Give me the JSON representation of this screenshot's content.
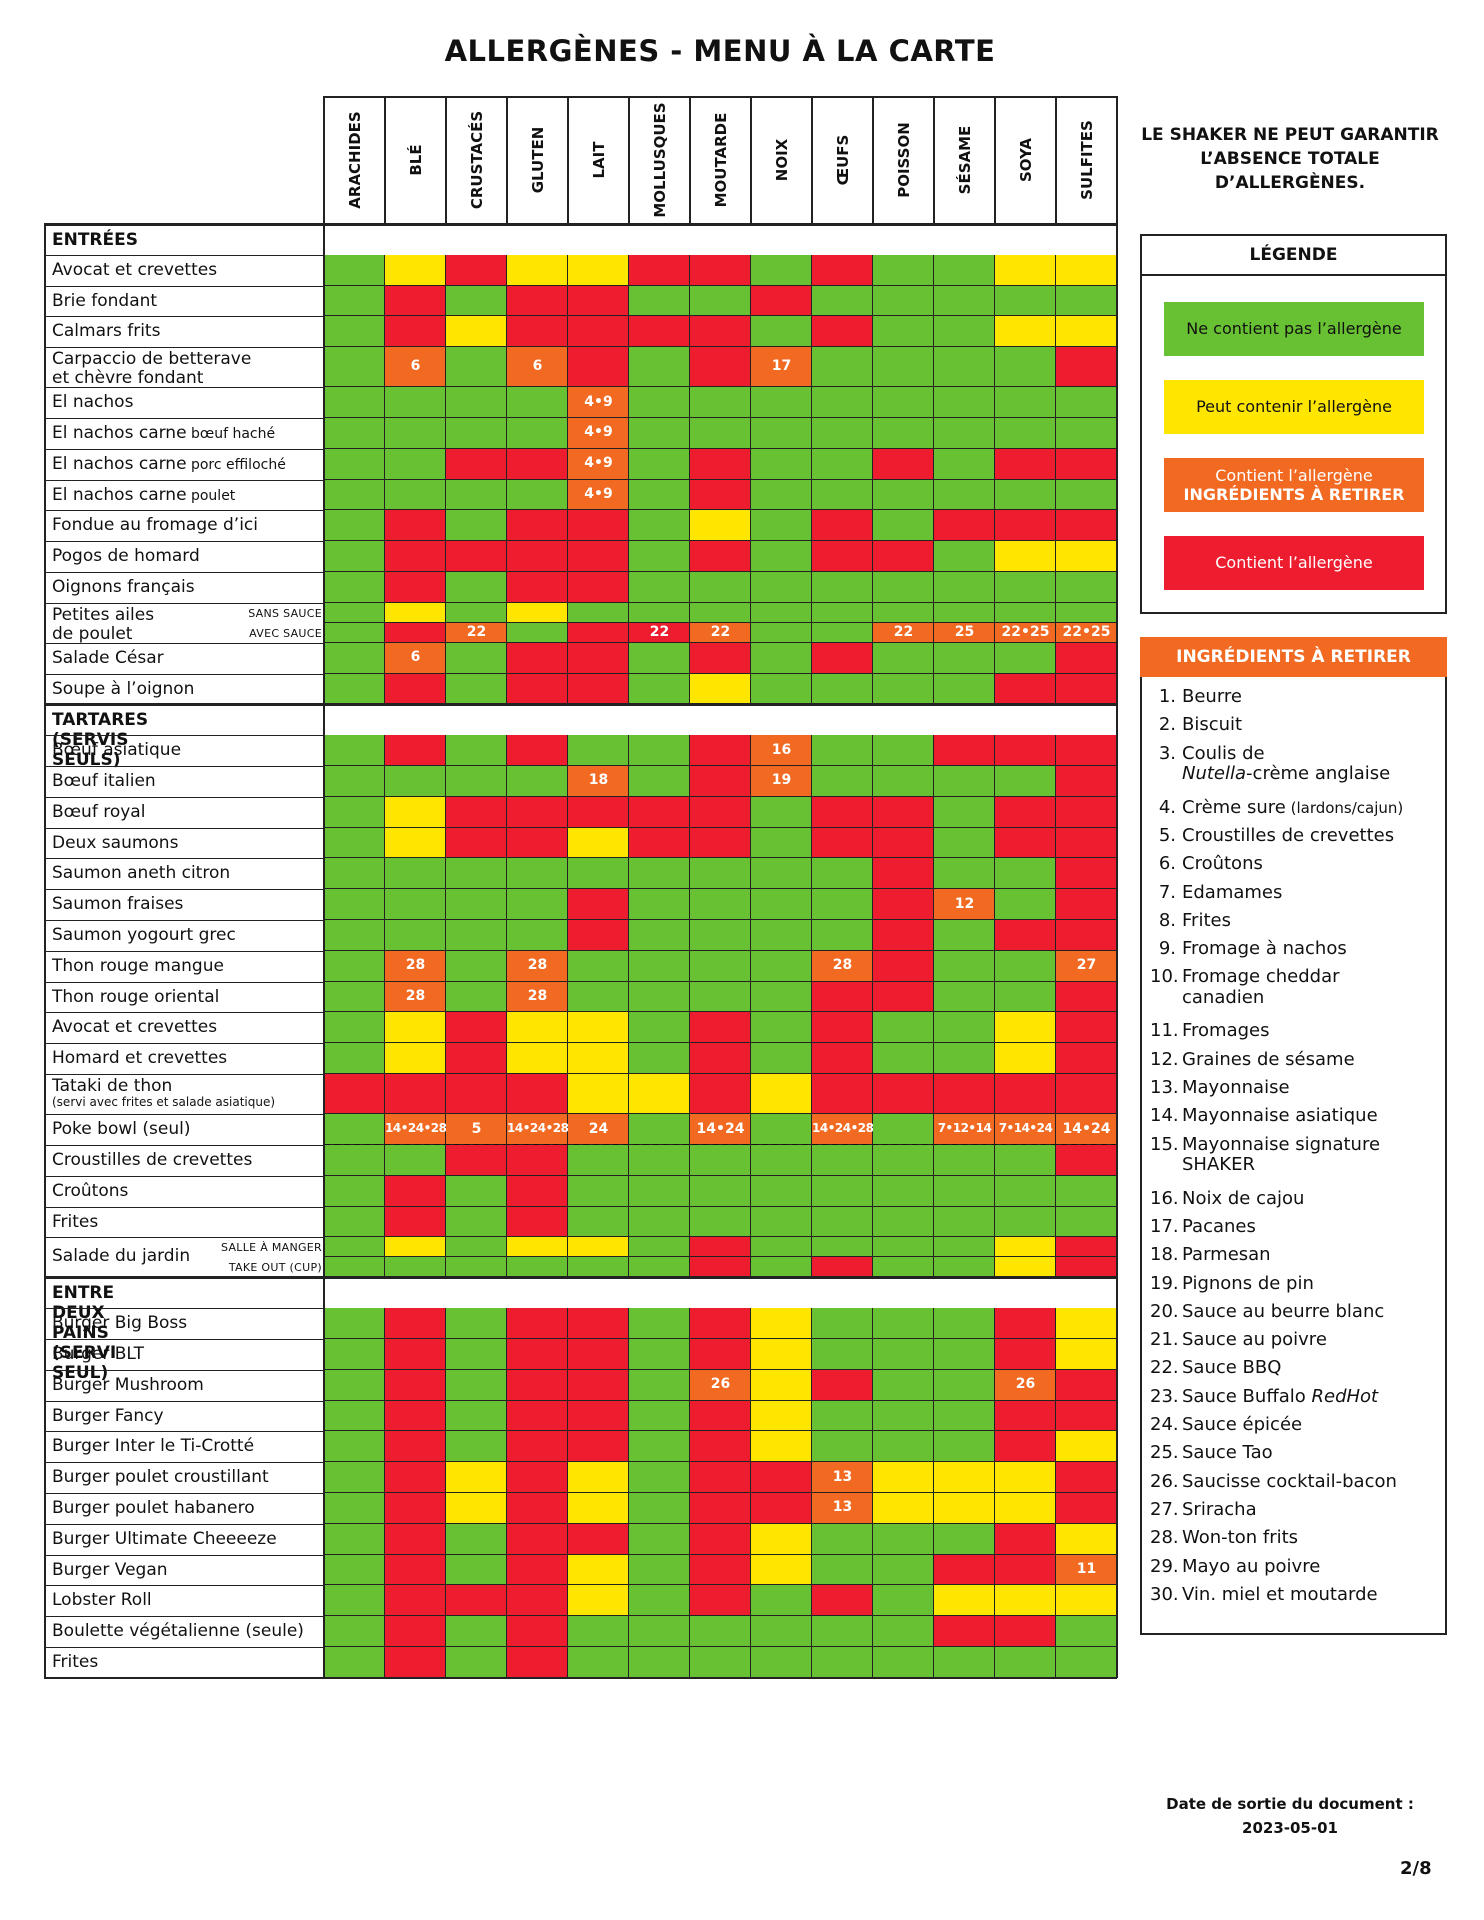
{
  "title": "ALLERGÈNES - MENU À LA CARTE",
  "columns": [
    "ARACHIDES",
    "BLÉ",
    "CRUSTACÉS",
    "GLUTEN",
    "LAIT",
    "MOLLUSQUES",
    "MOUTARDE",
    "NOIX",
    "ŒUFS",
    "POISSON",
    "SÉSAME",
    "SOYA",
    "SULFITES"
  ],
  "warning": "LE SHAKER NE PEUT GARANTIR L’ABSENCE TOTALE D’ALLERGÈNES.",
  "legend": {
    "title": "LÉGENDE",
    "items": [
      {
        "key": "G",
        "label": "Ne contient pas l’allergène",
        "color": "#68c132",
        "text_color": "#111"
      },
      {
        "key": "Y",
        "label": "Peut contenir l’allergène",
        "color": "#ffe600",
        "text_color": "#111"
      },
      {
        "key": "O",
        "label": "Contient l’allergène",
        "label2": "INGRÉDIENTS À RETIRER",
        "color": "#f26a22",
        "text_color": "#fff"
      },
      {
        "key": "R",
        "label": "Contient l’allergène",
        "color": "#ed1c2e",
        "text_color": "#fff"
      }
    ]
  },
  "ingredients_title": "INGRÉDIENTS À RETIRER",
  "ingredients": [
    {
      "n": "1.",
      "t": "Beurre"
    },
    {
      "n": "2.",
      "t": "Biscuit"
    },
    {
      "n": "3.",
      "t": "Coulis de",
      "t2i": "Nutella",
      "t2": "-crème anglaise"
    },
    {
      "n": "4.",
      "t": "Crème sure",
      "s": "(lardons/cajun)"
    },
    {
      "n": "5.",
      "t": "Croustilles de crevettes"
    },
    {
      "n": "6.",
      "t": "Croûtons"
    },
    {
      "n": "7.",
      "t": "Edamames"
    },
    {
      "n": "8.",
      "t": "Frites"
    },
    {
      "n": "9.",
      "t": "Fromage à nachos"
    },
    {
      "n": "10.",
      "t": "Fromage cheddar",
      "t2": "canadien"
    },
    {
      "n": "11.",
      "t": "Fromages"
    },
    {
      "n": "12.",
      "t": "Graines de sésame"
    },
    {
      "n": "13.",
      "t": "Mayonnaise"
    },
    {
      "n": "14.",
      "t": "Mayonnaise asiatique"
    },
    {
      "n": "15.",
      "t": "Mayonnaise signature",
      "t2": "SHAKER"
    },
    {
      "n": "16.",
      "t": "Noix de cajou"
    },
    {
      "n": "17.",
      "t": "Pacanes"
    },
    {
      "n": "18.",
      "t": "Parmesan"
    },
    {
      "n": "19.",
      "t": "Pignons de pin"
    },
    {
      "n": "20.",
      "t": "Sauce au beurre blanc"
    },
    {
      "n": "21.",
      "t": "Sauce au poivre"
    },
    {
      "n": "22.",
      "t": "Sauce BBQ"
    },
    {
      "n": "23.",
      "t": "Sauce Buffalo ",
      "ti": "RedHot"
    },
    {
      "n": "24.",
      "t": "Sauce épicée"
    },
    {
      "n": "25.",
      "t": "Sauce Tao"
    },
    {
      "n": "26.",
      "t": "Saucisse cocktail-bacon"
    },
    {
      "n": "27.",
      "t": "Sriracha"
    },
    {
      "n": "28.",
      "t": "Won-ton frits"
    },
    {
      "n": "29.",
      "t": "Mayo au poivre"
    },
    {
      "n": "30.",
      "t": "Vin. miel et moutarde"
    }
  ],
  "date_label": "Date de sortie du document :",
  "date_value": "2023-05-01",
  "page_number": "2/8",
  "sections": [
    {
      "title": "ENTRÉES",
      "rows": [
        {
          "label": "Avocat et crevettes",
          "cells": "GYRYYRRGRGGYY"
        },
        {
          "label": "Brie fondant",
          "cells": "GRGRRGGRGGGGG"
        },
        {
          "label": "Calmars frits",
          "cells": "GRYRRRRGRGGYY"
        },
        {
          "label": "Carpaccio de betterave",
          "label2": "et chèvre fondant",
          "tall": true,
          "cells": "GOGORGROGGGGR",
          "nums": {
            "1": "6",
            "3": "6",
            "7": "17"
          }
        },
        {
          "label": "El nachos",
          "cells": "GGGGOGGGGGGGG",
          "nums": {
            "4": "4•9"
          }
        },
        {
          "label": "El nachos carne",
          "sub": "bœuf haché",
          "cells": "GGGGOGGGGGGGG",
          "nums": {
            "4": "4•9"
          }
        },
        {
          "label": "El nachos carne",
          "sub": "porc effiloché",
          "cells": "GGRROGRGGRGRR",
          "nums": {
            "4": "4•9"
          }
        },
        {
          "label": "El nachos carne",
          "sub": "poulet",
          "cells": "GGGGOGRGGGGGG",
          "nums": {
            "4": "4•9"
          }
        },
        {
          "label": "Fondue au fromage d’ici",
          "cells": "GRGRRGYGRGRRR"
        },
        {
          "label": "Pogos de homard",
          "cells": "GRRRRGRGRRGYY"
        },
        {
          "label": "Oignons français",
          "cells": "GRGRRGGGGGGGG"
        },
        {
          "label": "Petites ailes",
          "label2": "de poulet",
          "split": [
            "SANS SAUCE",
            "AVEC SAUCE"
          ],
          "cells": "GYGYGGGGGGGGG",
          "cells2": "GROGRROGGOOOO",
          "nums2": {
            "2": "22",
            "5": "22",
            "6": "22",
            "9": "22",
            "10": "25",
            "11": "22•25",
            "12": "22•25"
          }
        },
        {
          "label": "Salade César",
          "cells": "GOGRRGRGRGGGR",
          "nums": {
            "1": "6"
          }
        },
        {
          "label": "Soupe à l’oignon",
          "cells": "GRGRRGYGGGGRR"
        }
      ]
    },
    {
      "title": "TARTARES (SERVIS SEULS)",
      "rows": [
        {
          "label": "Bœuf asiatique",
          "cells": "GRGRGGROGGRRR",
          "nums": {
            "7": "16"
          }
        },
        {
          "label": "Bœuf italien",
          "cells": "GGGGOGROGGGGR",
          "nums": {
            "4": "18",
            "7": "19"
          }
        },
        {
          "label": "Bœuf royal",
          "cells": "GYRRRRRGRRGRR"
        },
        {
          "label": "Deux saumons",
          "cells": "GYRRYRRGRRGRR"
        },
        {
          "label": "Saumon aneth citron",
          "cells": "GGGGGGGGGRGGR"
        },
        {
          "label": "Saumon fraises",
          "cells": "GGGGRGGGGROGR",
          "nums": {
            "10": "12"
          }
        },
        {
          "label": "Saumon yogourt grec",
          "cells": "GGGGRGGGGRGRR"
        },
        {
          "label": "Thon rouge mangue",
          "cells": "GOGOGGGGORGGO",
          "nums": {
            "1": "28",
            "3": "28",
            "8": "28",
            "12": "27"
          }
        },
        {
          "label": "Thon rouge oriental",
          "cells": "GOGOGGGGRRGGR",
          "nums": {
            "1": "28",
            "3": "28"
          }
        },
        {
          "label": "Avocat et crevettes",
          "cells": "GYRYYGRGRGGYR"
        },
        {
          "label": "Homard et crevettes",
          "cells": "GYRYYGRGRGGYR"
        },
        {
          "label": "Tataki de thon",
          "label2": "(servi avec frites et salade asiatique)",
          "tall": true,
          "small2": true,
          "cells": "RRRRYYRYRRRRR"
        },
        {
          "label": "Poke bowl (seul)",
          "cells": "GOOOOGOGOGOOO",
          "nums": {
            "1": "14•24•28",
            "2": "5",
            "3": "14•24•28",
            "4": "24",
            "6": "14•24",
            "8": "14•24•28",
            "10": "7•12•14",
            "11": "7•14•24",
            "12": "14•24"
          },
          "dashed": true
        },
        {
          "label": "Croustilles de crevettes",
          "cells": "GGRRGGGGGGGGR"
        },
        {
          "label": "Croûtons",
          "cells": "GRGRGGGGGGGGG"
        },
        {
          "label": "Frites",
          "cells": "GRGRGGGGGGGGG"
        },
        {
          "label": "Salade du jardin",
          "split": [
            "SALLE À MANGER",
            "TAKE OUT (CUP)"
          ],
          "cells": "GYGYYGRGGGGYR",
          "cells2": "GGGGGGRGRGGYR"
        }
      ]
    },
    {
      "title": "ENTRE DEUX PAINS (SERVI SEUL)",
      "rows": [
        {
          "label": "Burger Big Boss",
          "cells": "GRGRRGRYGGGRY"
        },
        {
          "label": "Burger BLT",
          "cells": "GRGRRGRYGGGRY"
        },
        {
          "label": "Burger Mushroom",
          "cells": "GRGRRGOYRGGOR",
          "nums": {
            "6": "26",
            "11": "26"
          }
        },
        {
          "label": "Burger Fancy",
          "cells": "GRGRRGRYGGGRR"
        },
        {
          "label": "Burger Inter le Ti-Crotté",
          "cells": "GRGRRGRYGGGRY"
        },
        {
          "label": "Burger poulet croustillant",
          "cells": "GRYRYGRROYYYR",
          "nums": {
            "8": "13"
          }
        },
        {
          "label": "Burger poulet habanero",
          "cells": "GRYRYGRROYYYR",
          "nums": {
            "8": "13"
          }
        },
        {
          "label": "Burger Ultimate Cheeeeze",
          "cells": "GRGRRGRYGGGRY"
        },
        {
          "label": "Burger Vegan",
          "cells": "GRGRYGRYGGRRO",
          "nums": {
            "12": "11"
          }
        },
        {
          "label": "Lobster Roll",
          "cells": "GRRRYGRGRGYYY"
        },
        {
          "label": "Boulette végétalienne (seule)",
          "cells": "GRGRGGGGGGRRG"
        },
        {
          "label": "Frites",
          "cells": "GRGRGGGGGGGGG"
        }
      ]
    }
  ]
}
